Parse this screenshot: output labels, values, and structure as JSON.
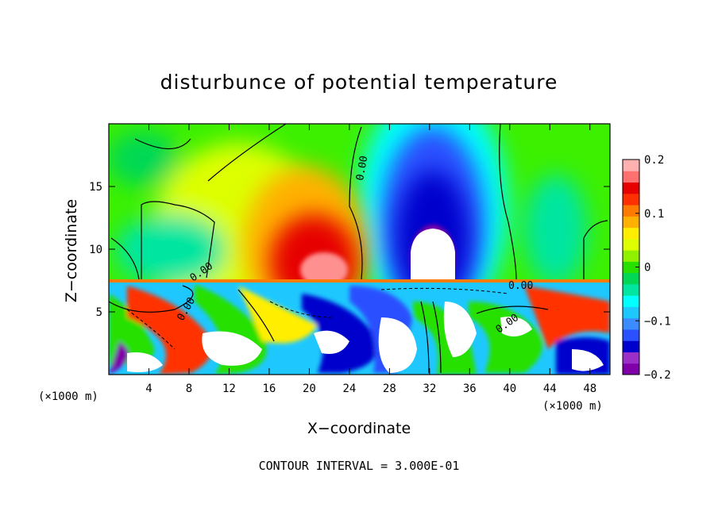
{
  "chart_data": {
    "type": "heatmap",
    "title": "disturbunce of potential temperature",
    "xlabel": "X−coordinate",
    "ylabel": "Z−coordinate",
    "x_unit": "(×1000 m)",
    "y_unit": "(×1000 m)",
    "xlim": [
      0,
      50
    ],
    "ylim": [
      0,
      20
    ],
    "x_ticks": [
      "4",
      "8",
      "12",
      "16",
      "20",
      "24",
      "28",
      "32",
      "36",
      "40",
      "44",
      "48"
    ],
    "x_tick_values": [
      4,
      8,
      12,
      16,
      20,
      24,
      28,
      32,
      36,
      40,
      44,
      48
    ],
    "y_ticks": [
      "5",
      "10",
      "15"
    ],
    "y_tick_values": [
      5,
      10,
      15
    ],
    "colorbar": {
      "ticks": [
        "0.2",
        "0.1",
        "0",
        "−0.1",
        "−0.2"
      ],
      "tick_values": [
        0.2,
        0.1,
        0,
        -0.1,
        -0.2
      ],
      "range": [
        -0.2,
        0.2
      ],
      "colors": [
        "#7f00a8",
        "#9b30c8",
        "#0000cc",
        "#2a50ff",
        "#3a8cff",
        "#1ec8ff",
        "#00ffff",
        "#00e6a0",
        "#00d855",
        "#28e000",
        "#8ff000",
        "#ddff00",
        "#ffee00",
        "#ffb000",
        "#ff7a00",
        "#ff3000",
        "#e60000",
        "#ff7070",
        "#ffb0b0"
      ]
    },
    "contour_labels": [
      "0.00",
      "0.00",
      "0.00",
      "0.00",
      "0.00"
    ],
    "features": [
      {
        "kind": "warm",
        "x": 21,
        "z": 10.5,
        "value": 0.2
      },
      {
        "kind": "cold",
        "x": 32,
        "z": 11,
        "value": -0.2
      },
      {
        "kind": "inversion",
        "z": 7.3
      }
    ],
    "note": "CONTOUR INTERVAL = 3.000E-01"
  }
}
